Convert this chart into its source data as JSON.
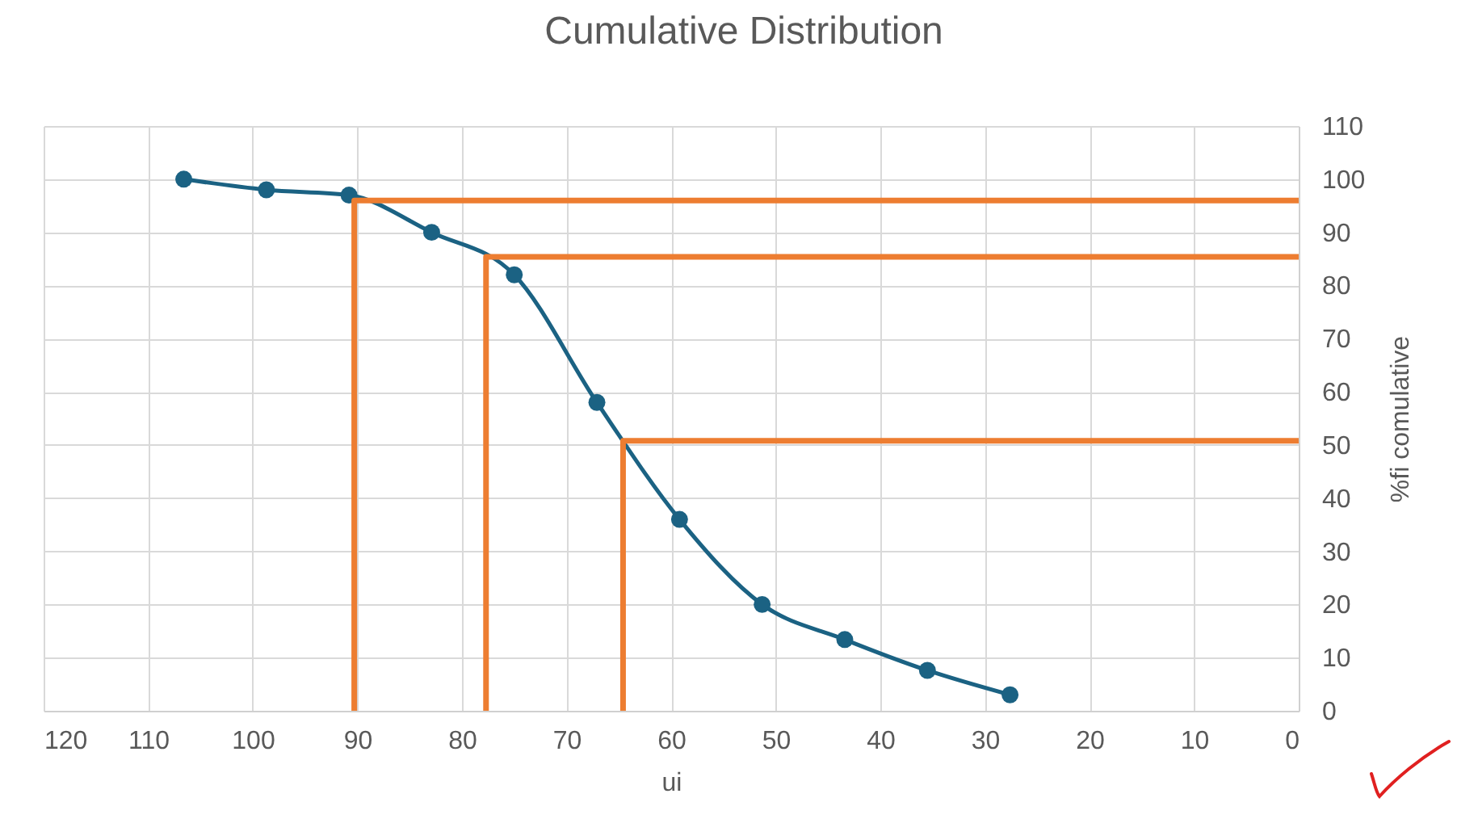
{
  "chart_data": {
    "type": "line",
    "title": "Cumulative Distribution",
    "xlabel": "ui",
    "ylabel": "%fi comulative",
    "x": [
      106.6,
      98.7,
      90.8,
      82.9,
      75,
      67.1,
      59.2,
      51.3,
      43.4,
      35.5,
      27.6
    ],
    "series": [
      {
        "color": "#1b6283",
        "values": [
          100,
          98,
          97,
          90,
          82,
          58,
          36,
          20,
          13.4,
          7.6,
          3
        ]
      },
      {
        "color": "#ed7d31",
        "marker": "none",
        "x": [
          90.3,
          90.3,
          0
        ],
        "values": [
          0,
          96,
          96
        ]
      },
      {
        "color": "#ed7d31",
        "marker": "none",
        "x": [
          77.7,
          77.7,
          0
        ],
        "values": [
          0,
          85.4,
          85.4
        ]
      },
      {
        "color": "#ed7d31",
        "marker": "none",
        "x": [
          64.6,
          64.6,
          0
        ],
        "values": [
          0,
          50.8,
          50.8
        ]
      }
    ],
    "xlim": [
      120,
      0
    ],
    "xticks": [
      120,
      110,
      100,
      90,
      80,
      70,
      60,
      50,
      40,
      30,
      20,
      10,
      0
    ],
    "ylim": [
      0,
      110
    ],
    "yticks": [
      0,
      10,
      20,
      30,
      40,
      50,
      60,
      70,
      80,
      90,
      100,
      110
    ],
    "grid": true,
    "marker": "circle"
  }
}
